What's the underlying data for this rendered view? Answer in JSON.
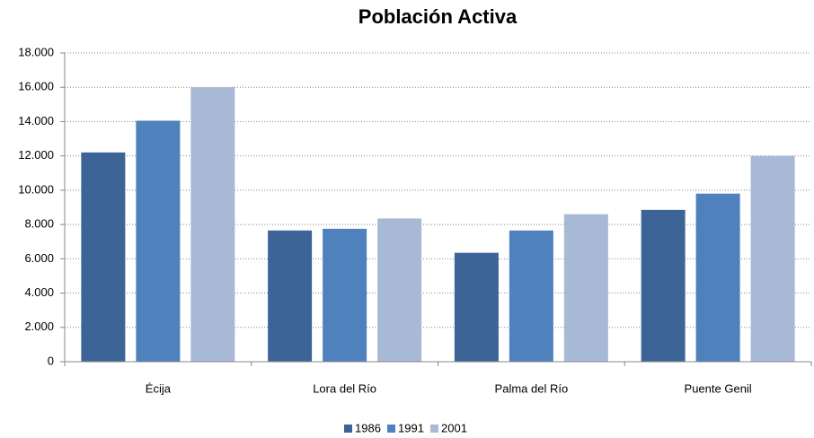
{
  "chart_data": {
    "type": "bar",
    "title": "Población Activa",
    "categories": [
      "Écija",
      "Lora del Río",
      "Palma del Río",
      "Puente Genil"
    ],
    "series": [
      {
        "name": "1986",
        "color": "#3c6496",
        "values": [
          12200,
          7650,
          6350,
          8850
        ]
      },
      {
        "name": "1991",
        "color": "#4f81bd",
        "values": [
          14050,
          7750,
          7650,
          9800
        ]
      },
      {
        "name": "2001",
        "color": "#a8b9d6",
        "values": [
          16000,
          8350,
          8600,
          12000
        ]
      }
    ],
    "ylim": [
      0,
      18000
    ],
    "yticks": [
      0,
      {
        "value": 2000,
        "label": "2.000"
      },
      {
        "value": 4000,
        "label": "4.000"
      },
      {
        "value": 6000,
        "label": "6.000"
      },
      {
        "value": 8000,
        "label": "8.000"
      },
      {
        "value": 10000,
        "label": "10.000"
      },
      {
        "value": 12000,
        "label": "12.000"
      },
      {
        "value": 14000,
        "label": "14.000"
      },
      {
        "value": 16000,
        "label": "16.000"
      },
      {
        "value": 18000,
        "label": "18.000"
      }
    ],
    "grid": true,
    "legend": "bottom"
  }
}
